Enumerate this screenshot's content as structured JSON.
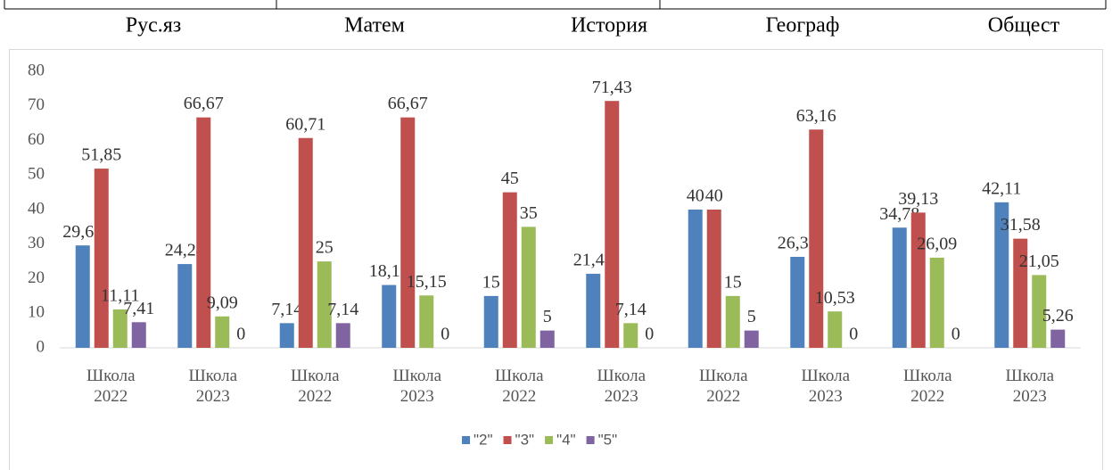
{
  "subjects": [
    "Рус.яз",
    "Матем",
    "История",
    "Географ",
    "Общест"
  ],
  "chart_data": {
    "type": "bar",
    "categories": [
      "Школа 2022",
      "Школа 2023",
      "Школа 2022",
      "Школа 2023",
      "Школа 2022",
      "Школа 2023",
      "Школа 2022",
      "Школа 2023",
      "Школа 2022",
      "Школа 2023"
    ],
    "series": [
      {
        "name": "\"2\"",
        "color": "#4f81bd",
        "values": [
          29.63,
          24.24,
          7.14,
          18.18,
          15,
          21.43,
          40,
          26.32,
          34.78,
          42.11
        ],
        "value_labels": [
          "29,63",
          "24,24",
          "7,14",
          "18,18",
          "15",
          "21,43",
          "40",
          "26,32",
          "34,78",
          "42,11"
        ]
      },
      {
        "name": "\"3\"",
        "color": "#c0504d",
        "values": [
          51.85,
          66.67,
          60.71,
          66.67,
          45,
          71.43,
          40,
          63.16,
          39.13,
          31.58
        ],
        "value_labels": [
          "51,85",
          "66,67",
          "60,71",
          "66,67",
          "45",
          "71,43",
          "40",
          "63,16",
          "39,13",
          "31,58"
        ]
      },
      {
        "name": "\"4\"",
        "color": "#9bbb59",
        "values": [
          11.11,
          9.09,
          25,
          15.15,
          35,
          7.14,
          15,
          10.53,
          26.09,
          21.05
        ],
        "value_labels": [
          "11,11",
          "9,09",
          "25",
          "15,15",
          "35",
          "7,14",
          "15",
          "10,53",
          "26,09",
          "21,05"
        ]
      },
      {
        "name": "\"5\"",
        "color": "#8064a2",
        "values": [
          7.41,
          0,
          7.14,
          0,
          5,
          0,
          5,
          0,
          0,
          5.26
        ],
        "value_labels": [
          "7,41",
          "0",
          "7,14",
          "0",
          "5",
          "0",
          "5",
          "0",
          "0",
          "5,26"
        ]
      }
    ],
    "ylim": [
      0,
      80
    ],
    "yticks": [
      0,
      10,
      20,
      30,
      40,
      50,
      60,
      70,
      80
    ],
    "legend": "bottom"
  }
}
